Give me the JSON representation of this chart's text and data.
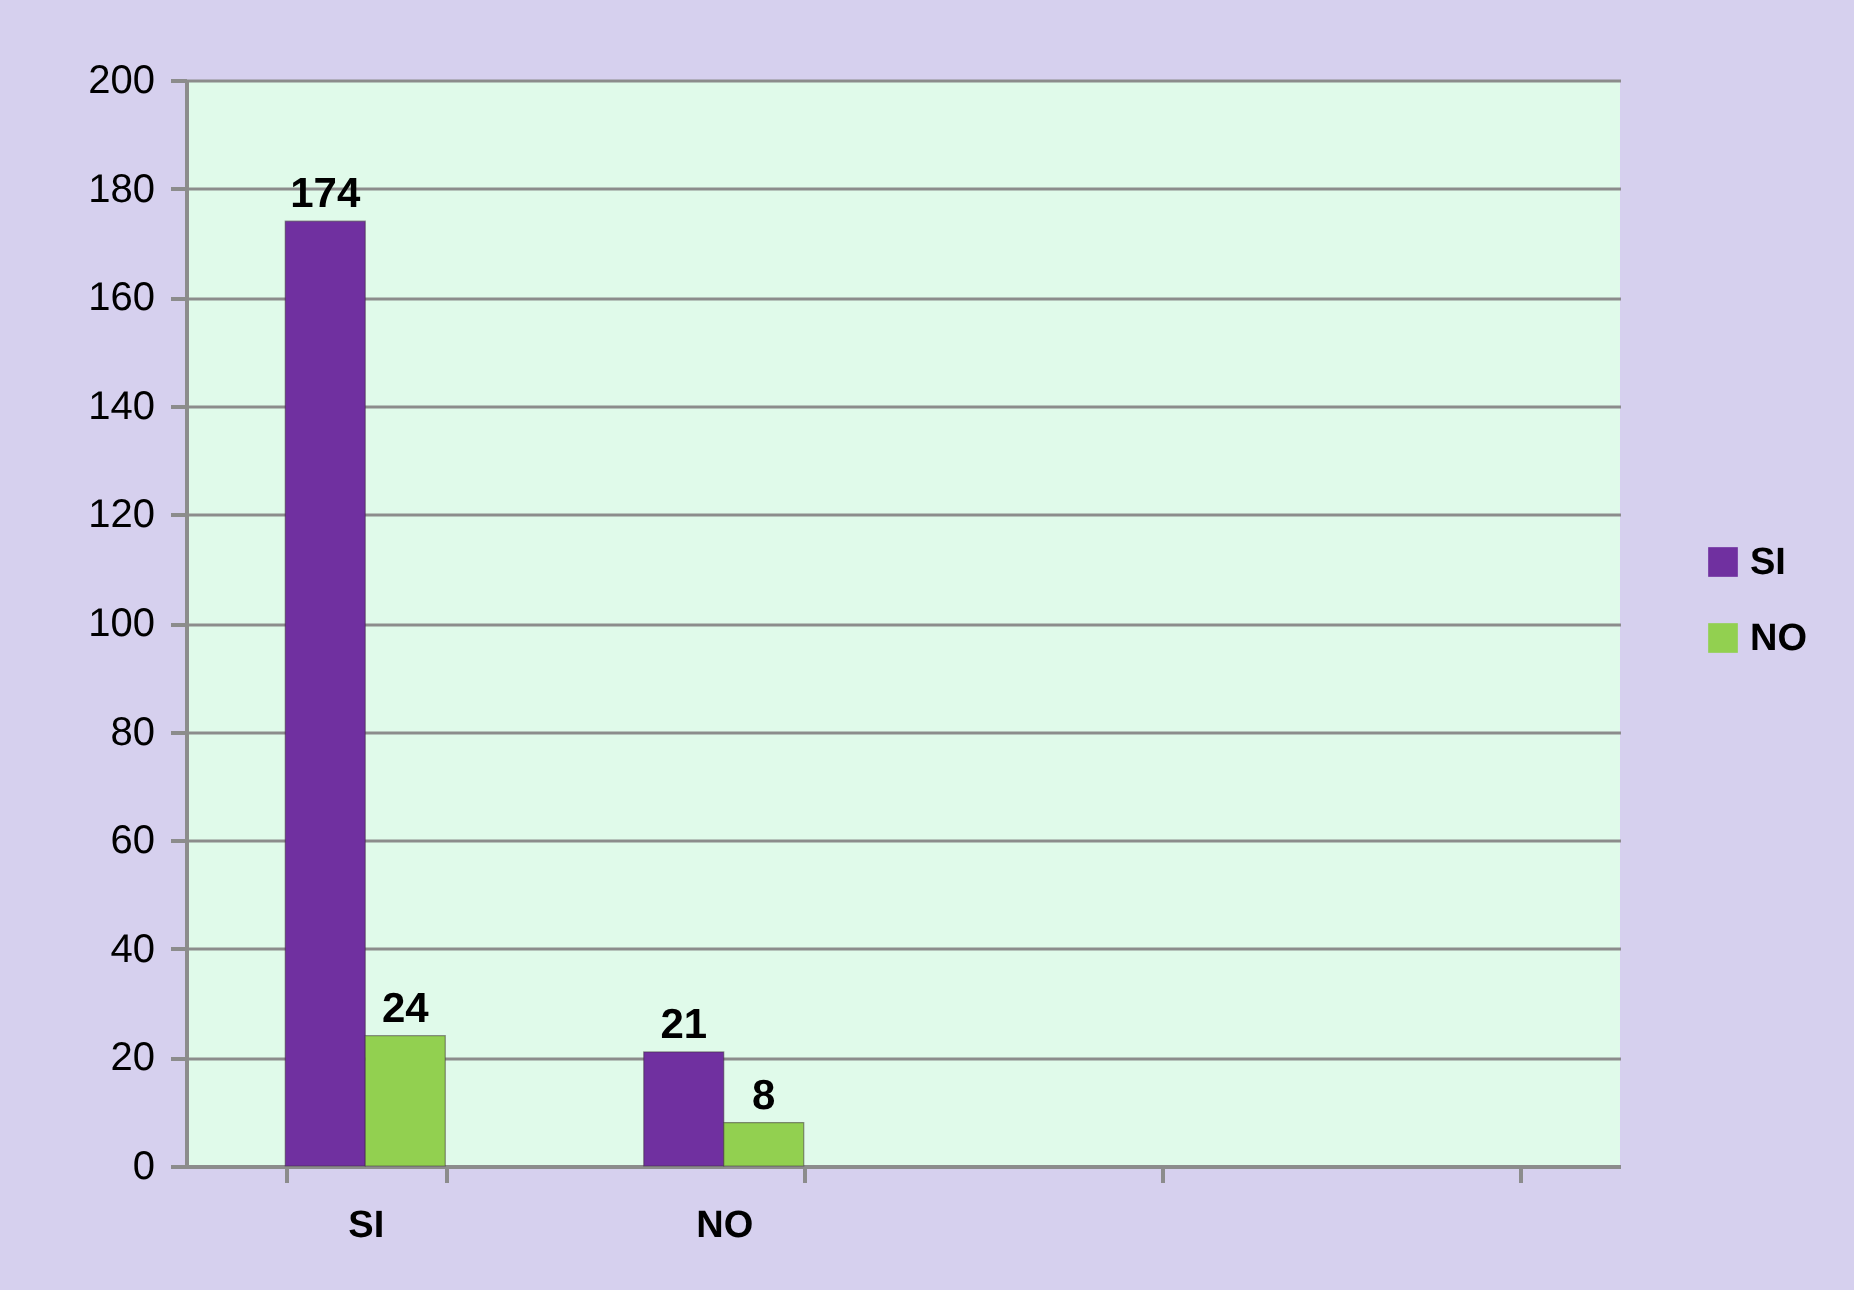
{
  "chart_data": {
    "type": "bar",
    "categories": [
      "SI",
      "NO",
      null,
      null
    ],
    "series": [
      {
        "name": "SI",
        "color": "#7030a0",
        "values": [
          174,
          21,
          null,
          null
        ]
      },
      {
        "name": "NO",
        "color": "#92d050",
        "values": [
          24,
          8,
          null,
          null
        ]
      }
    ],
    "ylim": [
      0,
      200
    ],
    "yticks": [
      0,
      20,
      40,
      60,
      80,
      100,
      120,
      140,
      160,
      180,
      200
    ],
    "grid": "y",
    "legend": "right",
    "data_labels": true
  }
}
